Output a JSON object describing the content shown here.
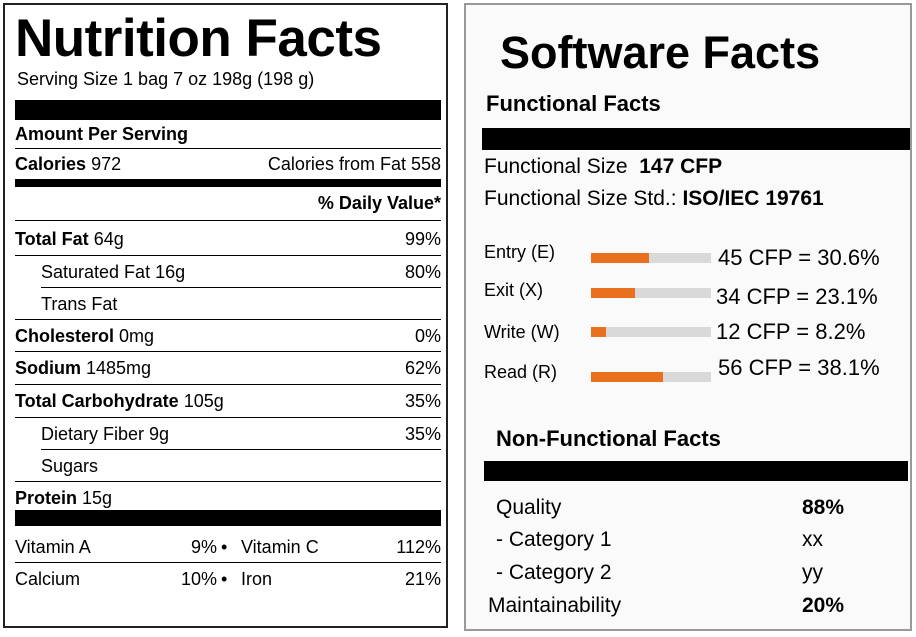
{
  "nutrition": {
    "title": "Nutrition Facts",
    "serving": "Serving Size 1 bag 7 oz 198g (198 g)",
    "amount_per_serving": "Amount Per Serving",
    "calories_label": "Calories",
    "calories_value": "972",
    "calories_from_fat": "Calories from Fat 558",
    "daily_value_header": "% Daily Value*",
    "rows": [
      {
        "label": "Total Fat",
        "amount": "64g",
        "pct": "99%"
      },
      {
        "label": "Saturated Fat 16g",
        "amount": "",
        "pct": "80%"
      },
      {
        "label": "Trans Fat",
        "amount": "",
        "pct": ""
      },
      {
        "label": "Cholesterol",
        "amount": "0mg",
        "pct": "0%"
      },
      {
        "label": "Sodium",
        "amount": "1485mg",
        "pct": "62%"
      },
      {
        "label": "Total Carbohydrate",
        "amount": "105g",
        "pct": "35%"
      },
      {
        "label": "Dietary Fiber 9g",
        "amount": "",
        "pct": "35%"
      },
      {
        "label": "Sugars",
        "amount": "",
        "pct": ""
      },
      {
        "label": "Protein",
        "amount": "15g",
        "pct": ""
      }
    ],
    "vitamins": [
      {
        "name1": "Vitamin A",
        "pct1": "9%",
        "name2": "Vitamin C",
        "pct2": "112%"
      },
      {
        "name1": "Calcium",
        "pct1": "10%",
        "name2": "Iron",
        "pct2": "21%"
      }
    ],
    "bullet": "•"
  },
  "software": {
    "title": "Software Facts",
    "functional_header": "Functional Facts",
    "functional_size_label": "Functional Size",
    "functional_size_value": "147 CFP",
    "functional_std_label": "Functional Size Std.:",
    "functional_std_value_a": "ISO/IEC",
    "functional_std_value_b": "19761",
    "measures": [
      {
        "label": "Entry (E)",
        "value": "45 CFP = 30.6%",
        "fraction": 0.306
      },
      {
        "label": "Exit (X)",
        "value": "34 CFP = 23.1%",
        "fraction": 0.231
      },
      {
        "label": "Write (W)",
        "value": "12 CFP = 8.2%",
        "fraction": 0.082
      },
      {
        "label": "Read (R)",
        "value": "56 CFP = 38.1%",
        "fraction": 0.381
      }
    ],
    "bar_color": "#e9701d",
    "track_color": "#d9d9d9",
    "nonfunctional_header": "Non-Functional Facts",
    "nonfunctional": [
      {
        "label": "Quality",
        "value": "88%",
        "bold": true
      },
      {
        "label": "- Category 1",
        "value": "xx",
        "bold": false
      },
      {
        "label": "- Category 2",
        "value": "yy",
        "bold": false
      },
      {
        "label": "Maintainability",
        "value": "20%",
        "bold": true
      }
    ]
  }
}
